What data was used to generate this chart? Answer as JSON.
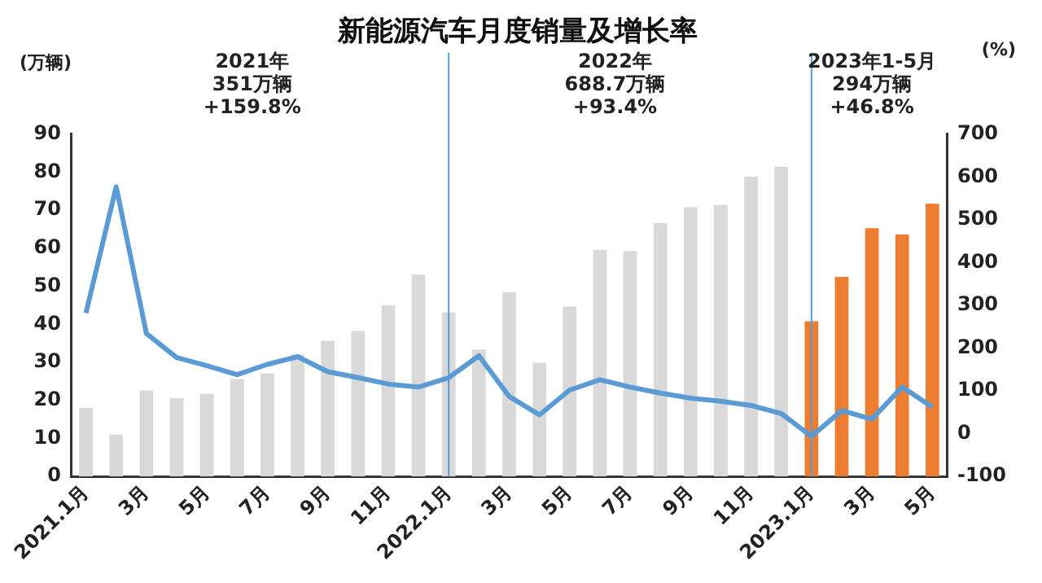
{
  "chart_data": {
    "type": "bar",
    "title": "新能源汽车月度销量及增长率",
    "ylabel": "(万辆)",
    "y2label": "(%)",
    "categories": [
      "2021.1月",
      null,
      "3月",
      null,
      "5月",
      null,
      "7月",
      null,
      "9月",
      null,
      "11月",
      null,
      "2022.1月",
      null,
      "3月",
      null,
      "5月",
      null,
      "7月",
      null,
      "9月",
      null,
      "11月",
      null,
      "2023.1月",
      null,
      "3月",
      null,
      "5月"
    ],
    "series": [
      {
        "colors": [
          "#d9d9d9",
          "#d9d9d9",
          "#d9d9d9",
          "#d9d9d9",
          "#d9d9d9",
          "#d9d9d9",
          "#d9d9d9",
          "#d9d9d9",
          "#d9d9d9",
          "#d9d9d9",
          "#d9d9d9",
          "#d9d9d9",
          "#d9d9d9",
          "#d9d9d9",
          "#d9d9d9",
          "#d9d9d9",
          "#d9d9d9",
          "#d9d9d9",
          "#d9d9d9",
          "#d9d9d9",
          "#d9d9d9",
          "#d9d9d9",
          "#d9d9d9",
          "#d9d9d9",
          "#ed7d31",
          "#ed7d31",
          "#ed7d31",
          "#ed7d31",
          "#ed7d31"
        ],
        "values": [
          18,
          11,
          22.6,
          20.6,
          21.7,
          25.6,
          27.1,
          32.1,
          35.7,
          38.3,
          45,
          53.1,
          43.1,
          33.4,
          48.4,
          29.9,
          44.7,
          59.6,
          59.3,
          66.6,
          70.8,
          71.4,
          78.8,
          81.4,
          40.8,
          52.5,
          65.3,
          63.6,
          71.7
        ]
      },
      {
        "type": "line",
        "axis": "y2",
        "color": "#5b9bd5",
        "values": [
          282,
          577,
          234,
          178,
          159,
          138,
          162,
          180,
          145,
          131,
          116,
          109,
          131,
          182,
          87,
          44,
          102,
          126,
          109,
          95,
          83,
          76,
          66,
          47,
          -6,
          54,
          34,
          109,
          62
        ]
      }
    ],
    "ylim": [
      0,
      90
    ],
    "yticks": [
      0,
      10,
      20,
      30,
      40,
      50,
      60,
      70,
      80,
      90
    ],
    "y2lim": [
      -100,
      700
    ],
    "y2ticks": [
      -100,
      0,
      100,
      200,
      300,
      400,
      500,
      600,
      700
    ],
    "grid": false,
    "legend": false,
    "marker": "none",
    "line_style": "solid",
    "ref_lines": [
      {
        "axis": "x",
        "value": "2022.1月",
        "color": "#5b9bd5"
      },
      {
        "axis": "x",
        "value": "2023.1月",
        "color": "#5b9bd5"
      }
    ],
    "annotations": [
      "2021年\n351万辆\n+159.8%",
      "2022年\n688.7万辆\n+93.4%",
      "2023年1-5月\n294万辆\n+46.8%"
    ]
  }
}
